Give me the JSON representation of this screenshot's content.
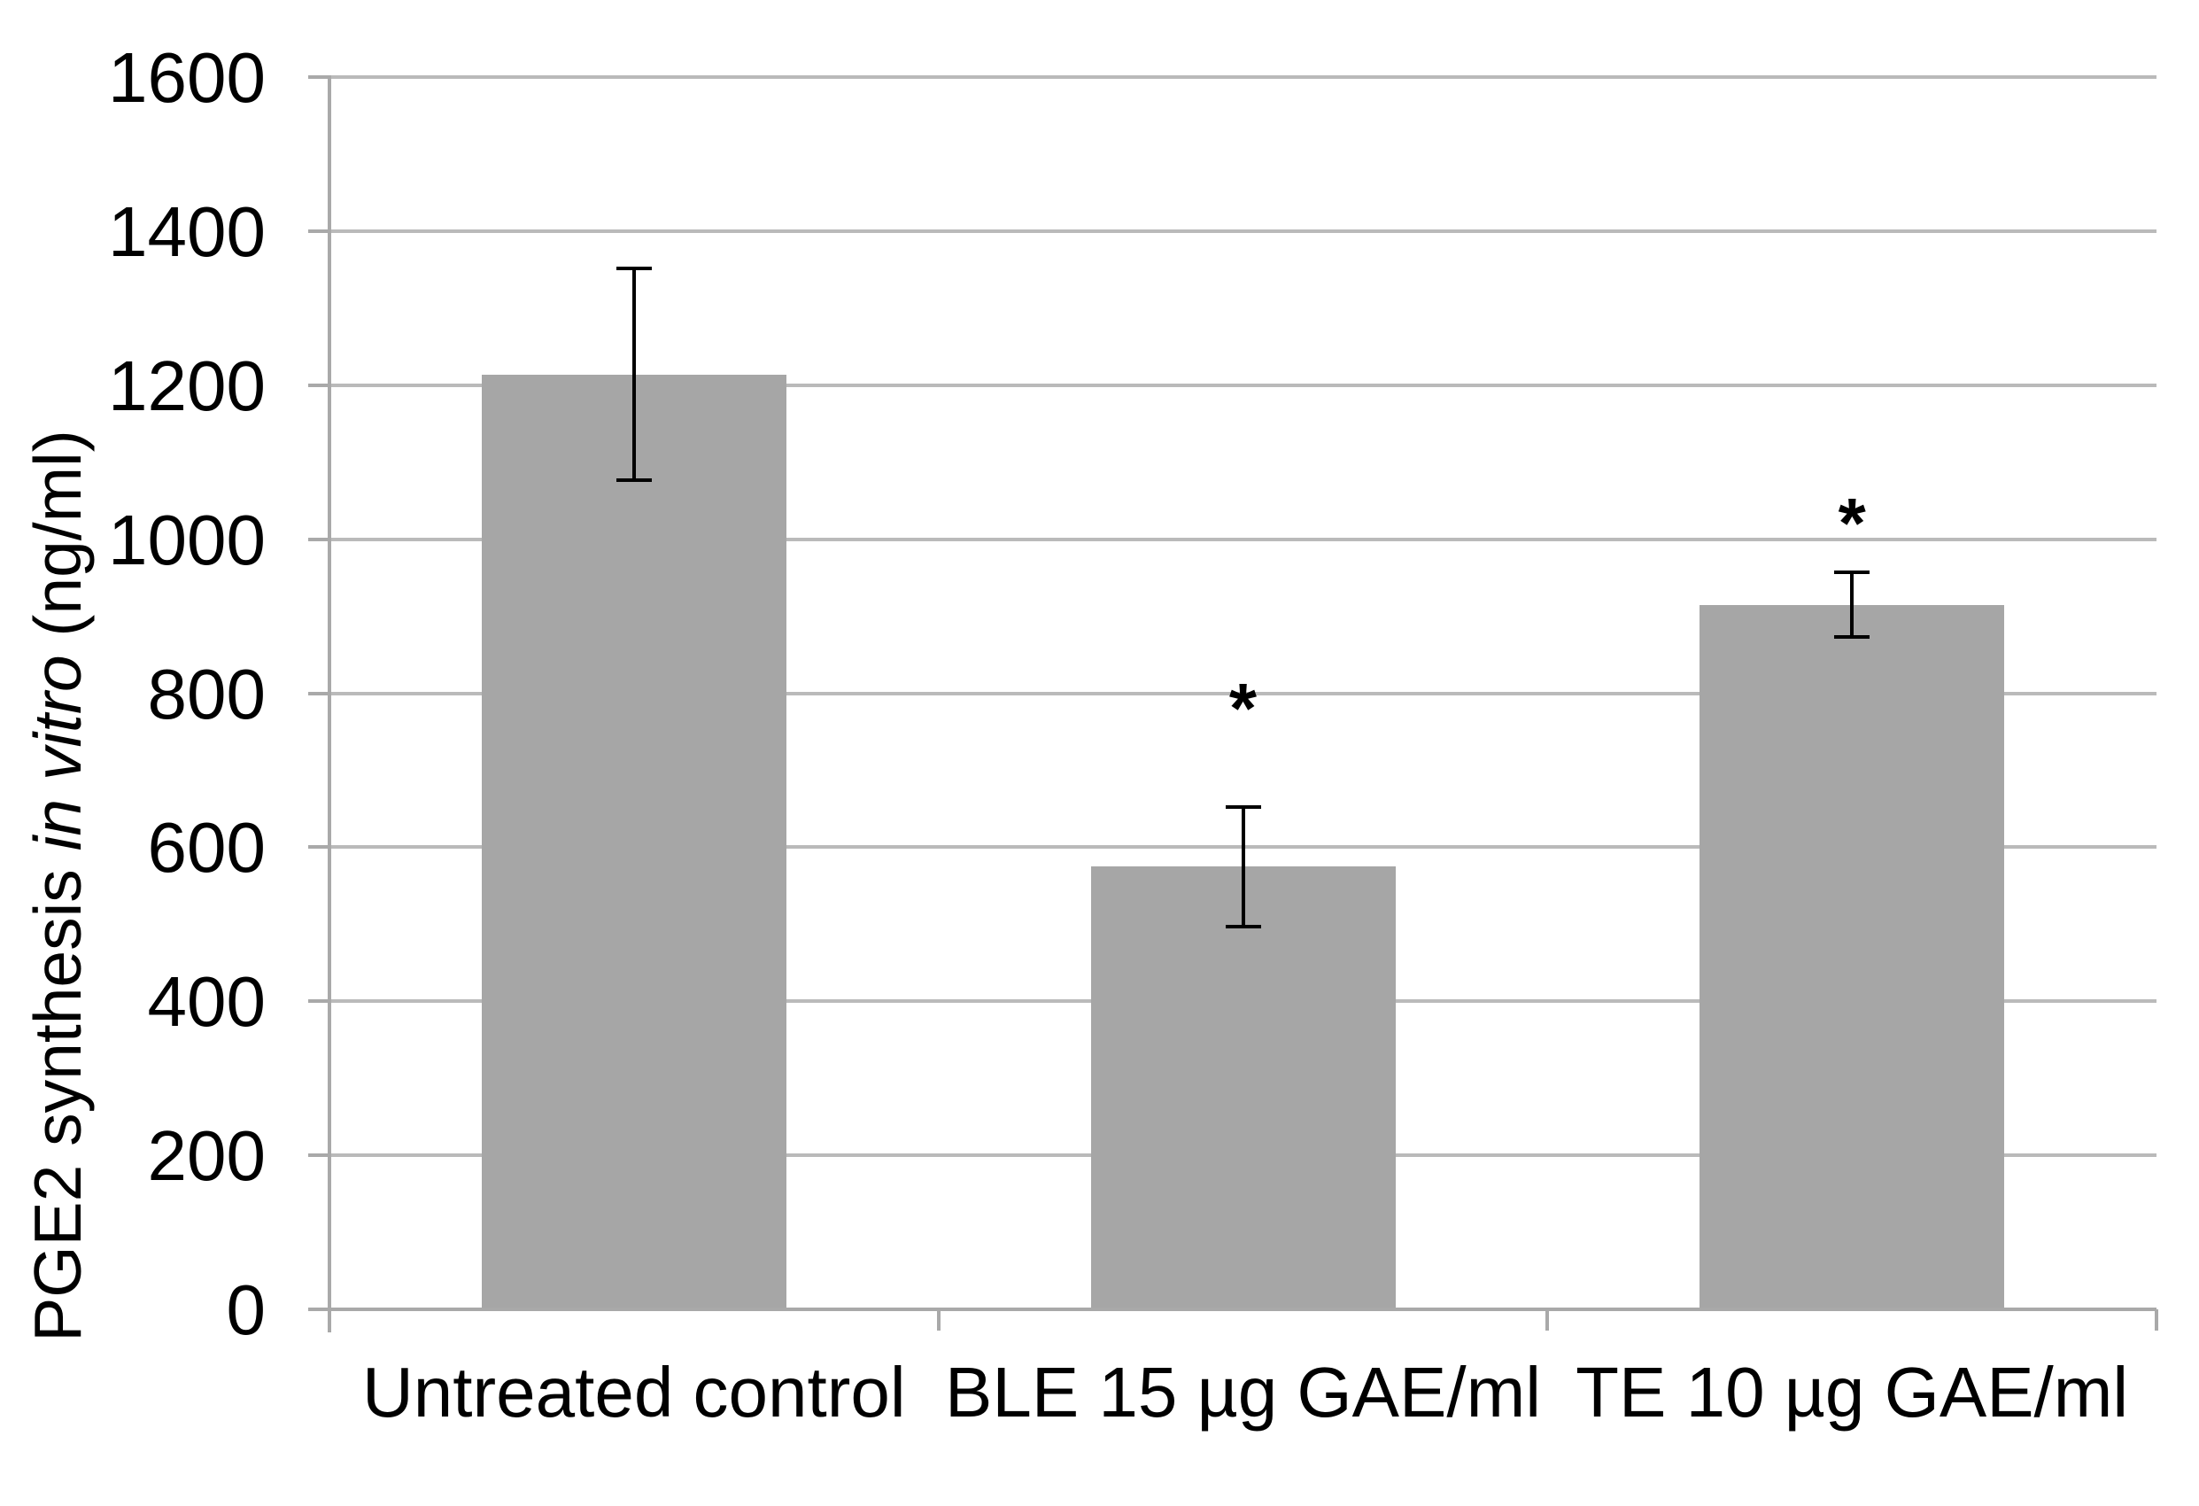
{
  "chart_data": {
    "type": "bar",
    "title": "",
    "categories": [
      "Untreated control",
      "BLE 15 µg GAE/ml",
      "TE 10 µg GAE/ml"
    ],
    "values": [
      1213,
      575,
      915
    ],
    "error_upper": [
      1351,
      652,
      957
    ],
    "error_lower": [
      1077,
      497,
      873
    ],
    "significance_labels": [
      "",
      "*",
      "*"
    ],
    "significance_y": [
      null,
      795,
      1035
    ],
    "ylabel": "PGE2 synthesis in vitro (ng/ml)",
    "ylabel_prefix": "PGE2 synthesis ",
    "ylabel_italic": "in vitro",
    "ylabel_suffix": " (ng/ml)",
    "xlabel": "",
    "ylim": [
      0,
      1600
    ],
    "ytick_step": 200,
    "yticks": [
      0,
      200,
      400,
      600,
      800,
      1000,
      1200,
      1400,
      1600
    ],
    "grid": true,
    "legend": false,
    "bar_color": "#a6a6a6",
    "gridline_color": "#bababa",
    "axis_color": "#a9a9a9",
    "error_bar_color": "#000000",
    "text_color": "#000000"
  }
}
